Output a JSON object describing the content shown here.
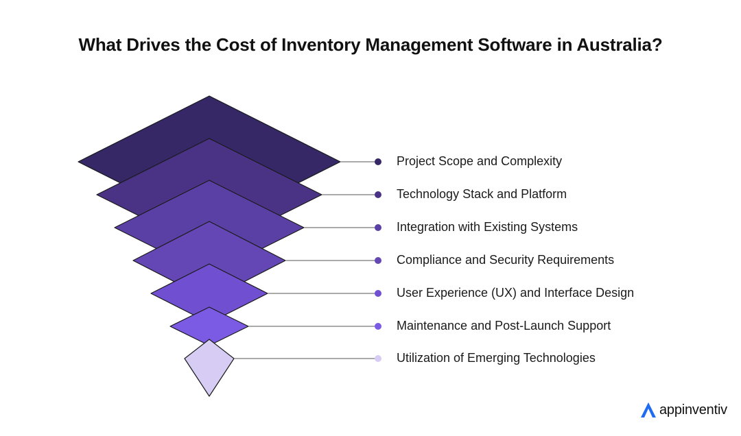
{
  "title": "What Drives the Cost of Inventory Management Software in Australia?",
  "items": [
    {
      "label": "Project Scope and Complexity",
      "color": "#362766"
    },
    {
      "label": "Technology Stack and Platform",
      "color": "#4a3285"
    },
    {
      "label": "Integration with Existing Systems",
      "color": "#5a40a5"
    },
    {
      "label": "Compliance and Security Requirements",
      "color": "#6447b4"
    },
    {
      "label": "User Experience (UX) and Interface Design",
      "color": "#704fd0"
    },
    {
      "label": "Maintenance and Post-Launch Support",
      "color": "#7b5ae4"
    },
    {
      "label": "Utilization of Emerging Technologies",
      "color": "#d7ccf4"
    }
  ],
  "brand": {
    "name": "appinventiv",
    "color": "#1f6cf2"
  }
}
